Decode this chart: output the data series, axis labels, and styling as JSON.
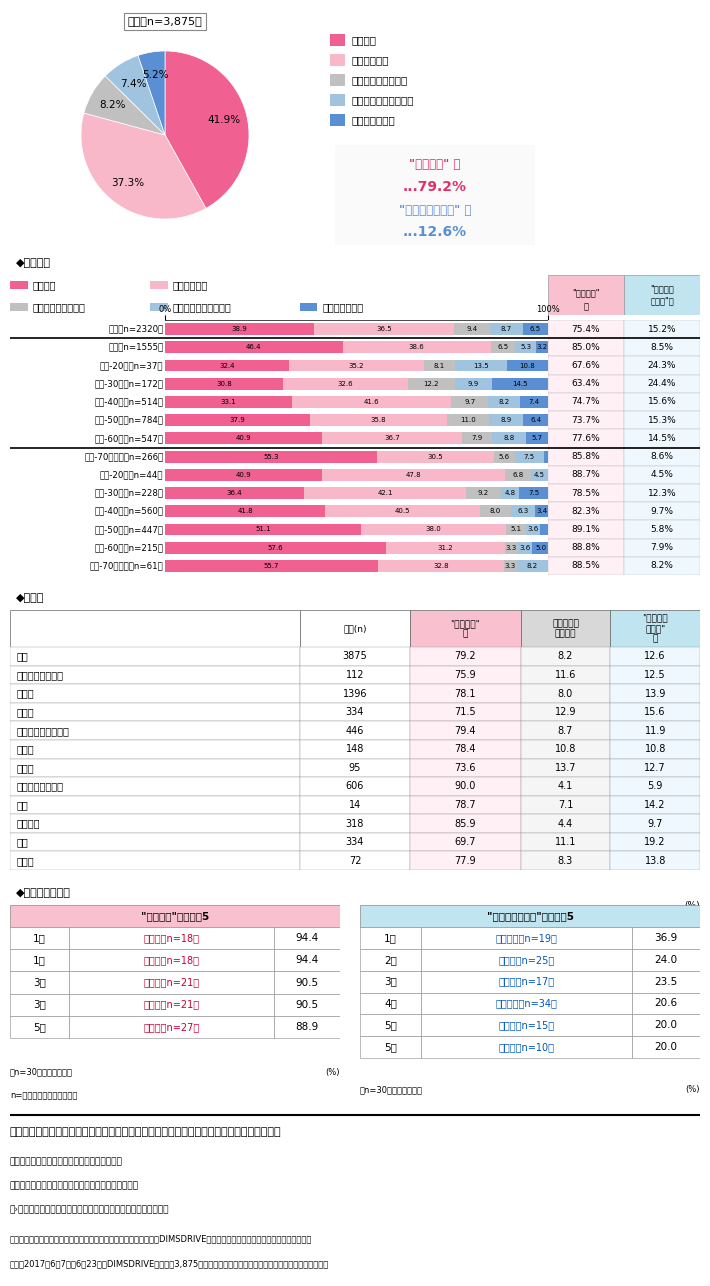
{
  "pie": {
    "values": [
      41.9,
      37.3,
      8.2,
      7.4,
      5.2
    ],
    "colors": [
      "#f06090",
      "#f9b8ca",
      "#c0c0c0",
      "#a0c4e0",
      "#5b8fd4"
    ],
    "labels": [
      "意識する",
      "少し意識する",
      "どちらともいえない",
      "あまり意識していない",
      "意識していない"
    ],
    "title": "全体（n=3,875）",
    "conscious_total": "79.2%",
    "unconscious_total": "12.6%"
  },
  "gender_bars": {
    "categories": [
      "男性（n=2320）",
      "女性（n=1555）",
      "男性-20代（n=37）",
      "男性-30代（n=172）",
      "男性-40代（n=514）",
      "男性-50代（n=784）",
      "男性-60代（n=547）",
      "男性-70代以上（n=266）",
      "女性-20代（n=44）",
      "女性-30代（n=228）",
      "女性-40代（n=560）",
      "女性-50代（n=447）",
      "女性-60代（n=215）",
      "女性-70代以上（n=61）"
    ],
    "data": [
      [
        38.9,
        36.5,
        9.4,
        8.7,
        6.5
      ],
      [
        46.4,
        38.6,
        6.5,
        5.3,
        3.2
      ],
      [
        32.4,
        35.2,
        8.1,
        13.5,
        10.8
      ],
      [
        30.8,
        32.6,
        12.2,
        9.9,
        14.5
      ],
      [
        33.1,
        41.6,
        9.7,
        8.2,
        7.4
      ],
      [
        37.9,
        35.8,
        11.0,
        8.9,
        6.4
      ],
      [
        40.9,
        36.7,
        7.9,
        8.8,
        5.7
      ],
      [
        55.3,
        30.5,
        5.6,
        7.5,
        1.1
      ],
      [
        40.9,
        47.8,
        6.8,
        4.5,
        0.0
      ],
      [
        36.4,
        42.1,
        9.2,
        4.8,
        7.5
      ],
      [
        41.8,
        40.5,
        8.0,
        6.3,
        3.4
      ],
      [
        51.1,
        38.0,
        5.1,
        3.6,
        2.2
      ],
      [
        57.6,
        31.2,
        3.3,
        3.6,
        5.0
      ],
      [
        55.7,
        32.8,
        3.3,
        8.2,
        0.0
      ]
    ],
    "colors": [
      "#f06090",
      "#f9b8ca",
      "#c0c0c0",
      "#a0c4e0",
      "#5b8fd4"
    ],
    "summary_conscious": [
      "75.4%",
      "85.0%",
      "67.6%",
      "63.4%",
      "74.7%",
      "73.7%",
      "77.6%",
      "85.8%",
      "88.7%",
      "78.5%",
      "82.3%",
      "89.1%",
      "88.8%",
      "88.5%"
    ],
    "summary_unconscious": [
      "15.2%",
      "8.5%",
      "24.3%",
      "24.4%",
      "15.6%",
      "15.3%",
      "14.5%",
      "8.6%",
      "4.5%",
      "12.3%",
      "9.7%",
      "5.8%",
      "7.9%",
      "8.2%"
    ]
  },
  "job_table": {
    "rows": [
      [
        "全体",
        "3875",
        "79.2",
        "8.2",
        "12.6"
      ],
      [
        "会社役員・経営者",
        "112",
        "75.9",
        "11.6",
        "12.5"
      ],
      [
        "会社員",
        "1396",
        "78.1",
        "8.0",
        "13.9"
      ],
      [
        "自営業",
        "334",
        "71.5",
        "12.9",
        "15.6"
      ],
      [
        "パート・アルバイト",
        "446",
        "79.4",
        "8.7",
        "11.9"
      ],
      [
        "公務員",
        "148",
        "78.4",
        "10.8",
        "10.8"
      ],
      [
        "自由業",
        "95",
        "73.6",
        "13.7",
        "12.7"
      ],
      [
        "専業主婦（主夫）",
        "606",
        "90.0",
        "4.1",
        "5.9"
      ],
      [
        "学生",
        "14",
        "78.7",
        "7.1",
        "14.2"
      ],
      [
        "定年退職",
        "318",
        "85.9",
        "4.4",
        "9.7"
      ],
      [
        "無職",
        "334",
        "69.7",
        "11.1",
        "19.2"
      ],
      [
        "その他",
        "72",
        "77.9",
        "8.3",
        "13.8"
      ]
    ]
  },
  "prefecture_ranking": {
    "conscious_top5": [
      [
        "1位",
        "香川県（n=18）",
        "94.4"
      ],
      [
        "1位",
        "大分県（n=18）",
        "94.4"
      ],
      [
        "3位",
        "山形県（n=21）",
        "90.5"
      ],
      [
        "3位",
        "沖縄県（n=21）",
        "90.5"
      ],
      [
        "5位",
        "秋田県（n=27）",
        "88.9"
      ]
    ],
    "unconscious_top5": [
      [
        "1位",
        "鹿児島県（n=19）",
        "36.9"
      ],
      [
        "2位",
        "岩手県（n=25）",
        "24.0"
      ],
      [
        "3位",
        "鳥取県（n=17）",
        "23.5"
      ],
      [
        "4位",
        "和歌山県（n=34）",
        "20.6"
      ],
      [
        "5位",
        "島根県（n=15）",
        "20.0"
      ],
      [
        "5位",
        "宮崎県（n=10）",
        "20.0"
      ]
    ],
    "note_conscious": "（n=30未満は参考値）",
    "note_unconscious": "（n=30未満は参考値）",
    "note_n": "n=サンプル数（回答者数）"
  },
  "footer": {
    "table_caption": "表１　「食品を購入する際、『賞味期限・消費期限』を意識していますか」についての回答",
    "note1": "賞味期限：おいしく食べることができる期限。",
    "note2": "消費期限：期限を過ぎたら食べないほうがよい期限。",
    "note3": "（›未開封の状態で、指定された方法を守って保存していた場合）",
    "survey_info": "調査機関：インターワイヤー株式会社が運営するネットリサーチ『DIMSDRIVE』実施のアンケート『賞味期限と消費期限』。",
    "survey_period": "期間：2017年6月7日～6月23日、DIMSDRIVEモニター3,875人が回答。表２～表７、エピソードも同アンケートです。"
  }
}
